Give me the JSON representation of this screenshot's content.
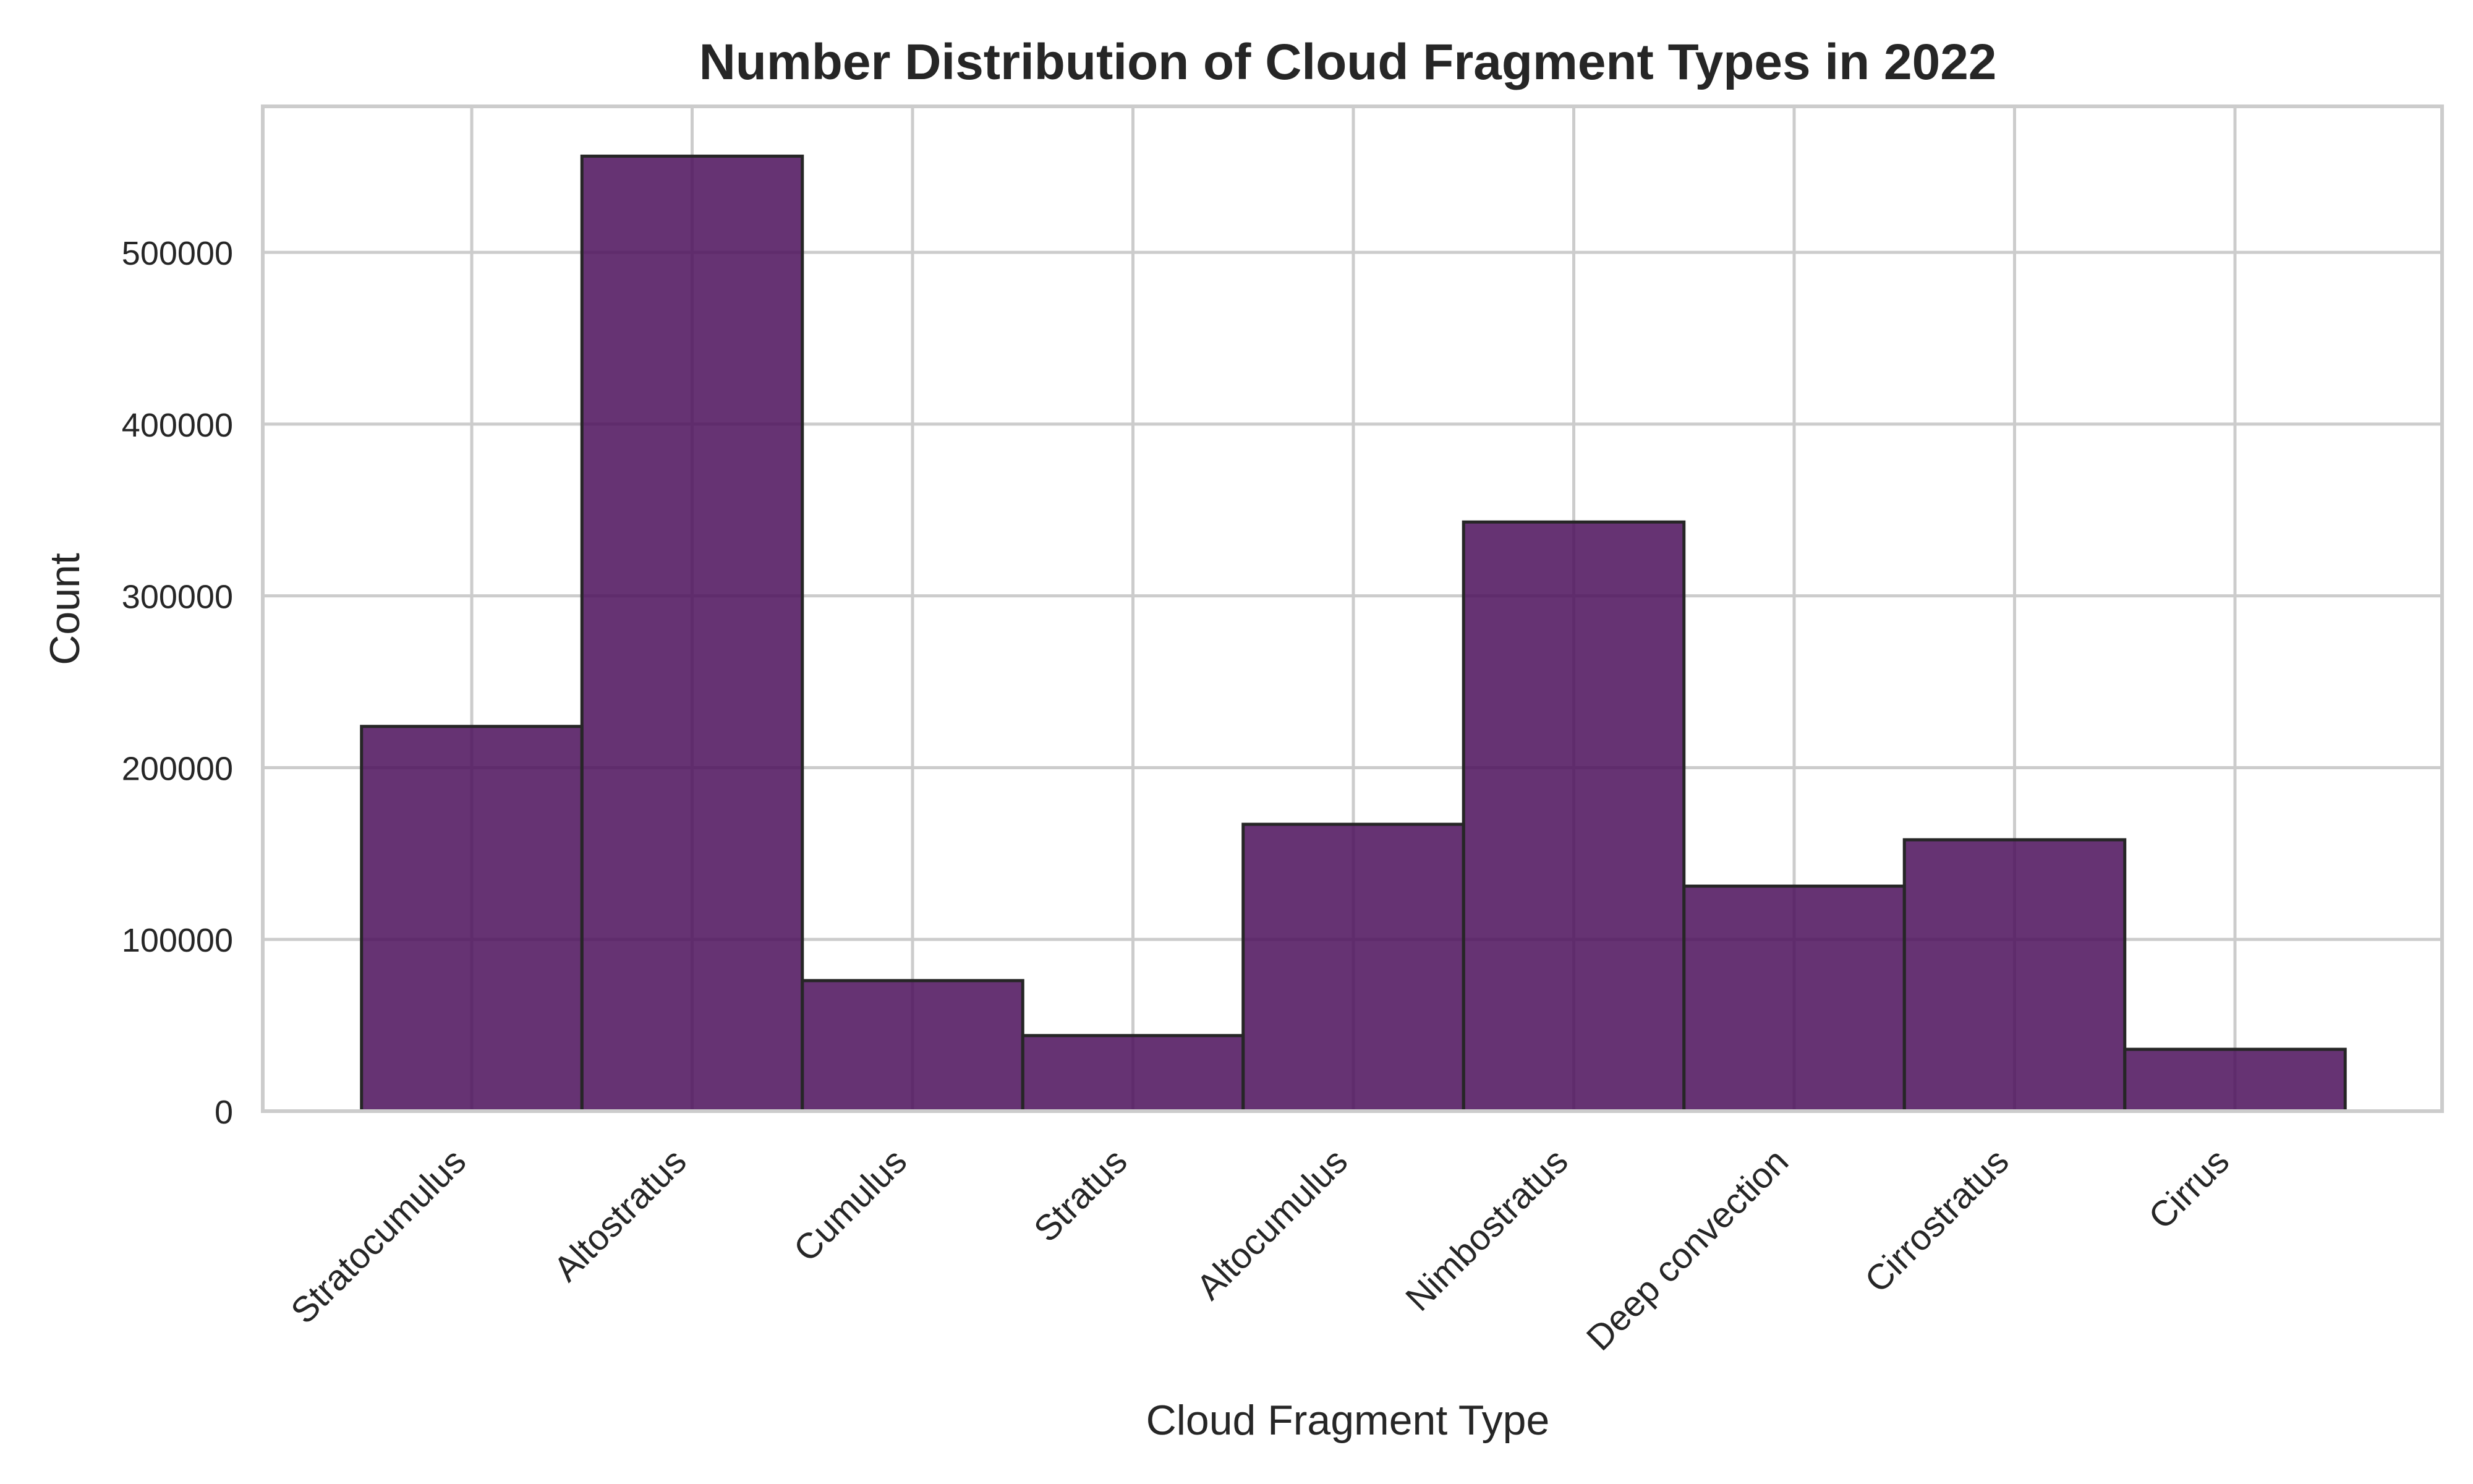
{
  "chart_data": {
    "type": "bar",
    "title": "Number Distribution of Cloud Fragment Types in 2022",
    "xlabel": "Cloud Fragment Type",
    "ylabel": "Count",
    "categories": [
      "Stratocumulus",
      "Altostratus",
      "Cumulus",
      "Stratus",
      "Altocumulus",
      "Nimbostratus",
      "Deep convection",
      "Cirrostratus",
      "Cirrus"
    ],
    "values": [
      224000,
      556000,
      76000,
      44000,
      167000,
      343000,
      131000,
      158000,
      36000
    ],
    "ylim": [
      0,
      585000
    ],
    "yticks": [
      0,
      100000,
      200000,
      300000,
      400000,
      500000
    ],
    "ytick_labels": [
      "0",
      "100000",
      "200000",
      "300000",
      "400000",
      "500000"
    ],
    "grid": true,
    "legend": "none",
    "bar_color": "#4b0f5b",
    "bar_opacity": 0.85,
    "bar_edge_color": "#262626",
    "grid_color": "#cccccc",
    "spine_color": "#cccccc"
  }
}
